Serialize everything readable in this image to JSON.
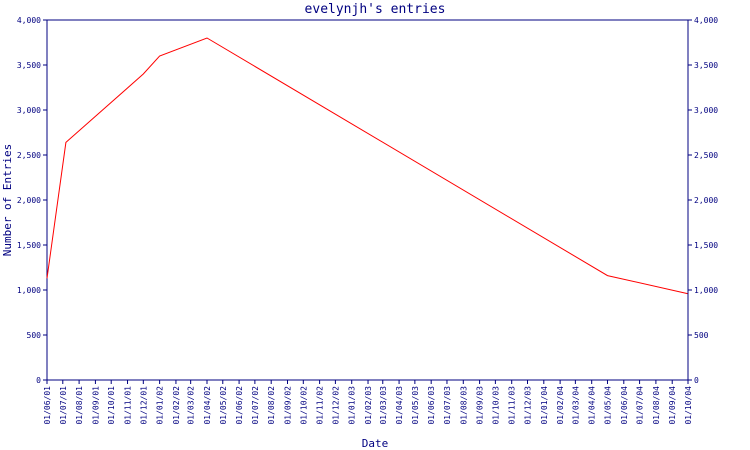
{
  "chart_data": {
    "type": "line",
    "title": "evelynjh's entries",
    "xlabel": "Date",
    "ylabel": "Number of Entries",
    "ylim": [
      0,
      4000
    ],
    "y_ticks": [
      0,
      500,
      1000,
      1500,
      2000,
      2500,
      3000,
      3500,
      4000
    ],
    "y_tick_labels": [
      "0",
      "500",
      "1,000",
      "1,500",
      "2,000",
      "2,500",
      "3,000",
      "3,500",
      "4,000"
    ],
    "x_ticks": [
      "2001-06-01",
      "2001-07-01",
      "2001-08-01",
      "2001-09-01",
      "2001-10-01",
      "2001-11-01",
      "2001-12-01",
      "2002-01-01",
      "2002-02-01",
      "2002-03-01",
      "2002-04-01",
      "2002-05-01",
      "2002-06-01",
      "2002-07-01",
      "2002-08-01",
      "2002-09-01",
      "2002-10-01",
      "2002-11-01",
      "2002-12-01",
      "2003-01-01",
      "2003-02-01",
      "2003-03-01",
      "2003-04-01",
      "2003-05-01",
      "2003-06-01",
      "2003-07-01",
      "2003-08-01",
      "2003-09-01",
      "2003-10-01",
      "2003-11-01",
      "2003-12-01",
      "2004-01-01",
      "2004-02-01",
      "2004-03-01",
      "2004-04-01",
      "2004-05-01",
      "2004-06-01",
      "2004-07-01",
      "2004-08-01",
      "2004-09-01",
      "2004-10-01"
    ],
    "x_tick_labels": [
      "01/06/01",
      "01/07/01",
      "01/08/01",
      "01/09/01",
      "01/10/01",
      "01/11/01",
      "01/12/01",
      "01/01/02",
      "01/02/02",
      "01/03/02",
      "01/04/02",
      "01/05/02",
      "01/06/02",
      "01/07/02",
      "01/08/02",
      "01/09/02",
      "01/10/02",
      "01/11/02",
      "01/12/02",
      "01/01/03",
      "01/02/03",
      "01/03/03",
      "01/04/03",
      "01/05/03",
      "01/06/03",
      "01/07/03",
      "01/08/03",
      "01/09/03",
      "01/10/03",
      "01/11/03",
      "01/12/03",
      "01/01/04",
      "01/02/04",
      "01/03/04",
      "01/04/04",
      "01/05/04",
      "01/06/04",
      "01/07/04",
      "01/08/04",
      "01/09/04",
      "01/10/04"
    ],
    "grid": false,
    "series": [
      {
        "color": "#ff0000",
        "points": [
          {
            "x": "2001-06-01",
            "y": 1130
          },
          {
            "x": "2001-07-07",
            "y": 2640
          },
          {
            "x": "2001-12-01",
            "y": 3400
          },
          {
            "x": "2002-01-01",
            "y": 3600
          },
          {
            "x": "2002-04-01",
            "y": 3800
          },
          {
            "x": "2004-05-01",
            "y": 1160
          },
          {
            "x": "2004-09-30",
            "y": 960
          }
        ]
      }
    ],
    "colors": {
      "axis": "#000080",
      "text": "#000080",
      "line": "#ff0000",
      "background": "#ffffff"
    }
  }
}
